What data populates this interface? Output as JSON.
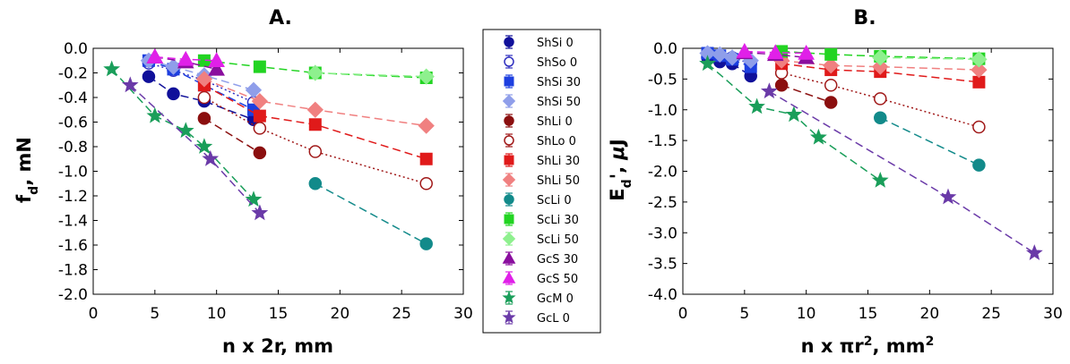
{
  "chart_data": [
    {
      "type": "scatter",
      "title": "A.",
      "xlabel": "n x 2r, mm",
      "ylabel": "f_d, mN",
      "xlim": [
        0,
        30
      ],
      "ylim": [
        -2.0,
        0.0
      ],
      "xticks": [
        "0",
        "5",
        "10",
        "15",
        "20",
        "25",
        "30"
      ],
      "yticks": [
        "0.0",
        "-0.2",
        "-0.4",
        "-0.6",
        "-0.8",
        "-1.0",
        "-1.2",
        "-1.4",
        "-1.6",
        "-1.8",
        "-2.0"
      ],
      "grid": false,
      "series": [
        {
          "name": "ShSi 0",
          "color": "#10109a",
          "marker": "circle",
          "fill": "solid",
          "line": "dashed",
          "x": [
            4.5,
            6.5,
            9,
            13
          ],
          "y": [
            -0.23,
            -0.37,
            -0.43,
            -0.58
          ]
        },
        {
          "name": "ShSo 0",
          "color": "#3030c0",
          "marker": "circle",
          "fill": "open",
          "line": "dotted",
          "x": [
            4.5,
            6.5,
            9,
            13
          ],
          "y": [
            -0.12,
            -0.18,
            -0.26,
            -0.44
          ]
        },
        {
          "name": "ShSi 30",
          "color": "#1d3fe0",
          "marker": "square",
          "fill": "solid",
          "line": "dashed",
          "x": [
            4.5,
            6.5,
            9,
            13
          ],
          "y": [
            -0.1,
            -0.17,
            -0.3,
            -0.5
          ]
        },
        {
          "name": "ShSi 50",
          "color": "#8f9eea",
          "marker": "diamond",
          "fill": "solid",
          "line": "dashed",
          "x": [
            4.5,
            6.5,
            9,
            13
          ],
          "y": [
            -0.1,
            -0.15,
            -0.22,
            -0.34
          ]
        },
        {
          "name": "ShLi 0",
          "color": "#8b0f0f",
          "marker": "circle",
          "fill": "solid",
          "line": "dashed",
          "x": [
            9,
            13.5
          ],
          "y": [
            -0.57,
            -0.85
          ]
        },
        {
          "name": "ShLo 0",
          "color": "#a01818",
          "marker": "circle",
          "fill": "open",
          "line": "dotted",
          "x": [
            9,
            13.5,
            18,
            27
          ],
          "y": [
            -0.4,
            -0.65,
            -0.84,
            -1.1
          ]
        },
        {
          "name": "ShLi 30",
          "color": "#e01a1a",
          "marker": "square",
          "fill": "solid",
          "line": "dashed",
          "x": [
            9,
            13.5,
            18,
            27
          ],
          "y": [
            -0.3,
            -0.55,
            -0.62,
            -0.9
          ]
        },
        {
          "name": "ShLi 50",
          "color": "#f08080",
          "marker": "diamond",
          "fill": "solid",
          "line": "dashed",
          "x": [
            9,
            13.5,
            18,
            27
          ],
          "y": [
            -0.25,
            -0.43,
            -0.5,
            -0.63
          ]
        },
        {
          "name": "ScLi 0",
          "color": "#128a8a",
          "marker": "circle",
          "fill": "solid",
          "line": "dashed",
          "x": [
            18,
            27
          ],
          "y": [
            -1.1,
            -1.59
          ]
        },
        {
          "name": "ScLi 30",
          "color": "#22d422",
          "marker": "square",
          "fill": "solid",
          "line": "dashed",
          "x": [
            9,
            13.5,
            18,
            27
          ],
          "y": [
            -0.1,
            -0.15,
            -0.2,
            -0.24
          ]
        },
        {
          "name": "ScLi 50",
          "color": "#8ef08e",
          "marker": "diamond",
          "fill": "solid",
          "line": "dashed",
          "x": [
            18,
            27
          ],
          "y": [
            -0.2,
            -0.23
          ]
        },
        {
          "name": "GcS 30",
          "color": "#8a0e9e",
          "marker": "triangle",
          "fill": "solid",
          "line": "dashed",
          "x": [
            5,
            7.5,
            10
          ],
          "y": [
            -0.07,
            -0.11,
            -0.17
          ]
        },
        {
          "name": "GcS 50",
          "color": "#e020e8",
          "marker": "triangle",
          "fill": "solid",
          "line": "dashed",
          "x": [
            5,
            7.5,
            10
          ],
          "y": [
            -0.07,
            -0.09,
            -0.1
          ]
        },
        {
          "name": "GcM 0",
          "color": "#1a9e5a",
          "marker": "star",
          "fill": "solid",
          "line": "dashed",
          "x": [
            1.5,
            5,
            7.5,
            9,
            13
          ],
          "y": [
            -0.17,
            -0.55,
            -0.67,
            -0.8,
            -1.23
          ]
        },
        {
          "name": "GcL 0",
          "color": "#6a3aa8",
          "marker": "star",
          "fill": "solid",
          "line": "dashed",
          "x": [
            3,
            9.5,
            13.5
          ],
          "y": [
            -0.3,
            -0.9,
            -1.34
          ]
        }
      ]
    },
    {
      "type": "scatter",
      "title": "B.",
      "xlabel": "n x πr², mm²",
      "ylabel": "E_d', μJ",
      "xlim": [
        0,
        30
      ],
      "ylim": [
        -4.0,
        0.0
      ],
      "xticks": [
        "0",
        "5",
        "10",
        "15",
        "20",
        "25",
        "30"
      ],
      "yticks": [
        "0.0",
        "-0.5",
        "-1.0",
        "-1.5",
        "-2.0",
        "-2.5",
        "-3.0",
        "-3.5",
        "-4.0"
      ],
      "grid": false,
      "series": [
        {
          "name": "ShSi 0",
          "color": "#10109a",
          "marker": "circle",
          "fill": "solid",
          "line": "dashed",
          "x": [
            2,
            3,
            4,
            5.5
          ],
          "y": [
            -0.15,
            -0.22,
            -0.25,
            -0.45
          ]
        },
        {
          "name": "ShSo 0",
          "color": "#3030c0",
          "marker": "circle",
          "fill": "open",
          "line": "dotted",
          "x": [
            2,
            3,
            4,
            5.5
          ],
          "y": [
            -0.08,
            -0.12,
            -0.15,
            -0.25
          ]
        },
        {
          "name": "ShSi 30",
          "color": "#1d3fe0",
          "marker": "square",
          "fill": "solid",
          "line": "dashed",
          "x": [
            2,
            3,
            4,
            5.5
          ],
          "y": [
            -0.08,
            -0.12,
            -0.18,
            -0.3
          ]
        },
        {
          "name": "ShSi 50",
          "color": "#8f9eea",
          "marker": "diamond",
          "fill": "solid",
          "line": "dashed",
          "x": [
            2,
            3,
            4,
            5.5
          ],
          "y": [
            -0.08,
            -0.1,
            -0.15,
            -0.2
          ]
        },
        {
          "name": "ShLi 0",
          "color": "#8b0f0f",
          "marker": "circle",
          "fill": "solid",
          "line": "dashed",
          "x": [
            8,
            12
          ],
          "y": [
            -0.6,
            -0.88
          ]
        },
        {
          "name": "ShLo 0",
          "color": "#a01818",
          "marker": "circle",
          "fill": "open",
          "line": "dotted",
          "x": [
            8,
            12,
            16,
            24
          ],
          "y": [
            -0.4,
            -0.6,
            -0.82,
            -1.28
          ]
        },
        {
          "name": "ShLi 30",
          "color": "#e01a1a",
          "marker": "square",
          "fill": "solid",
          "line": "dashed",
          "x": [
            8,
            12,
            16,
            24
          ],
          "y": [
            -0.25,
            -0.35,
            -0.38,
            -0.55
          ]
        },
        {
          "name": "ShLi 50",
          "color": "#f08080",
          "marker": "diamond",
          "fill": "solid",
          "line": "dashed",
          "x": [
            8,
            12,
            16,
            24
          ],
          "y": [
            -0.2,
            -0.28,
            -0.3,
            -0.35
          ]
        },
        {
          "name": "ScLi 0",
          "color": "#128a8a",
          "marker": "circle",
          "fill": "solid",
          "line": "dashed",
          "x": [
            16,
            24
          ],
          "y": [
            -1.13,
            -1.9
          ]
        },
        {
          "name": "ScLi 30",
          "color": "#22d422",
          "marker": "square",
          "fill": "solid",
          "line": "dashed",
          "x": [
            8,
            12,
            16,
            24
          ],
          "y": [
            -0.05,
            -0.1,
            -0.13,
            -0.17
          ]
        },
        {
          "name": "ScLi 50",
          "color": "#8ef08e",
          "marker": "diamond",
          "fill": "solid",
          "line": "dashed",
          "x": [
            16,
            24
          ],
          "y": [
            -0.15,
            -0.18
          ]
        },
        {
          "name": "GcS 30",
          "color": "#8a0e9e",
          "marker": "triangle",
          "fill": "solid",
          "line": "dashed",
          "x": [
            5,
            7.5,
            10
          ],
          "y": [
            -0.07,
            -0.1,
            -0.15
          ]
        },
        {
          "name": "GcS 50",
          "color": "#e020e8",
          "marker": "triangle",
          "fill": "solid",
          "line": "dashed",
          "x": [
            5,
            7.5,
            10
          ],
          "y": [
            -0.05,
            -0.07,
            -0.08
          ]
        },
        {
          "name": "GcM 0",
          "color": "#1a9e5a",
          "marker": "star",
          "fill": "solid",
          "line": "dashed",
          "x": [
            2,
            6,
            9,
            11,
            16
          ],
          "y": [
            -0.25,
            -0.95,
            -1.08,
            -1.45,
            -2.15
          ]
        },
        {
          "name": "GcL 0",
          "color": "#6a3aa8",
          "marker": "star",
          "fill": "solid",
          "line": "dashed",
          "x": [
            7,
            21.5,
            28.5
          ],
          "y": [
            -0.7,
            -2.42,
            -3.33
          ]
        }
      ]
    }
  ]
}
